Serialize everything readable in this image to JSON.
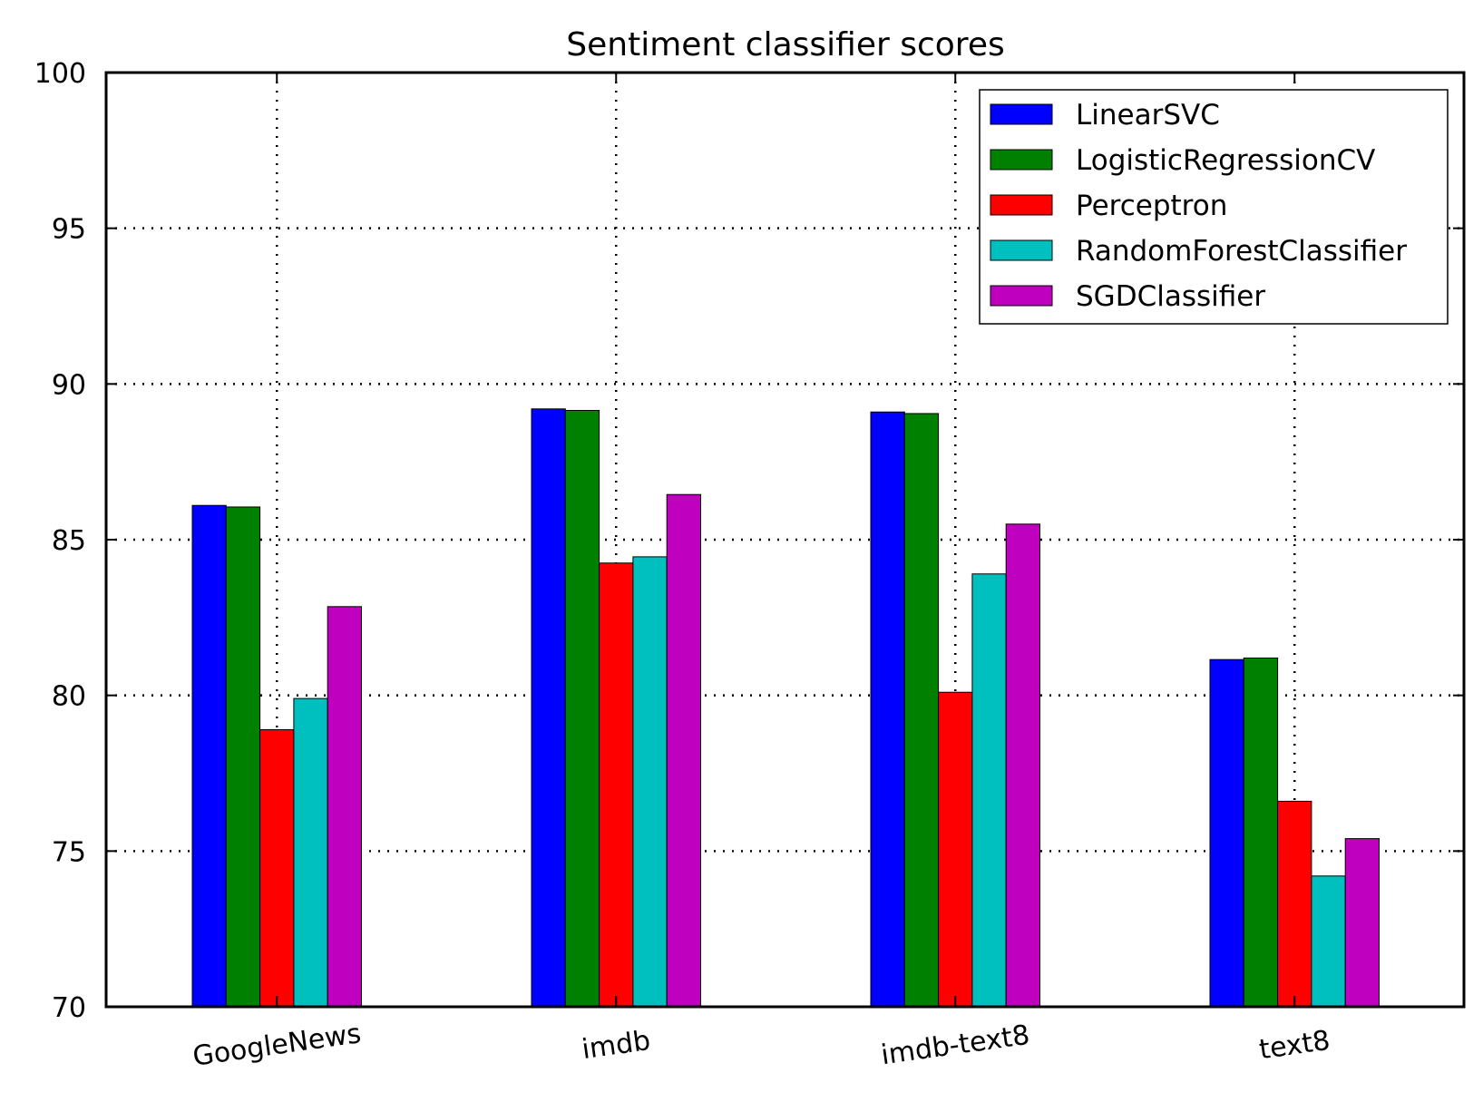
{
  "chart_data": {
    "type": "bar",
    "title": "Sentiment classifier scores",
    "xlabel": "",
    "ylabel": "",
    "categories": [
      "GoogleNews",
      "imdb",
      "imdb-text8",
      "text8"
    ],
    "series": [
      {
        "name": "LinearSVC",
        "color": "#0000ff",
        "values": [
          86.1,
          89.2,
          89.1,
          81.15
        ]
      },
      {
        "name": "LogisticRegressionCV",
        "color": "#008000",
        "values": [
          86.05,
          89.15,
          89.05,
          81.2
        ]
      },
      {
        "name": "Perceptron",
        "color": "#ff0000",
        "values": [
          78.9,
          84.25,
          80.1,
          76.6
        ]
      },
      {
        "name": "RandomForestClassifier",
        "color": "#00bfbf",
        "values": [
          79.9,
          84.45,
          83.9,
          74.2
        ]
      },
      {
        "name": "SGDClassifier",
        "color": "#bf00bf",
        "values": [
          82.85,
          86.45,
          85.5,
          75.4
        ]
      }
    ],
    "ylim": [
      70,
      100
    ],
    "yticks": [
      "70",
      "75",
      "80",
      "85",
      "90",
      "95",
      "100"
    ],
    "grid": true,
    "legend_position": "top-right"
  }
}
